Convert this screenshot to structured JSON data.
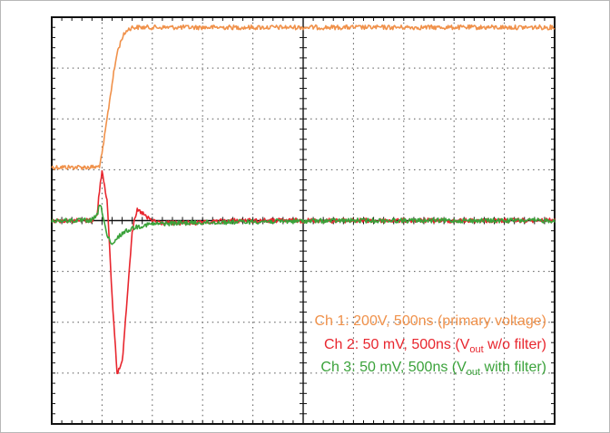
{
  "chart_data": {
    "type": "line",
    "title": "",
    "xlabel": "",
    "ylabel": "",
    "grid": true,
    "divisions": {
      "x": 10,
      "y": 8
    },
    "x": [
      0.0,
      0.8,
      0.9,
      0.95,
      1.0,
      1.1,
      1.2,
      1.3,
      1.4,
      1.5,
      1.6,
      1.7,
      1.8,
      1.9,
      2.0,
      2.2,
      2.5,
      3.0,
      3.5,
      4.0,
      5.0,
      6.0,
      7.0,
      8.0,
      9.0,
      10.0
    ],
    "x_unit": "divisions (500ns/div)",
    "y_unit": "divisions from top",
    "series": [
      {
        "name": "Ch 1: 200V, 500ns (primary voltage)",
        "color": "#f0914a",
        "values": [
          2.95,
          2.95,
          2.95,
          2.92,
          2.7,
          2.0,
          1.3,
          0.7,
          0.4,
          0.25,
          0.2,
          0.2,
          0.2,
          0.2,
          0.2,
          0.2,
          0.2,
          0.2,
          0.2,
          0.2,
          0.2,
          0.2,
          0.2,
          0.2,
          0.2,
          0.2
        ]
      },
      {
        "name": "Ch 2: 50 mV, 500ns (Vout w/o filter)",
        "color": "#e8262e",
        "values": [
          4.0,
          4.0,
          3.9,
          3.4,
          3.0,
          3.6,
          5.5,
          7.0,
          6.8,
          5.5,
          4.2,
          3.8,
          3.85,
          3.95,
          4.0,
          4.05,
          4.05,
          4.05,
          4.0,
          4.0,
          4.0,
          4.0,
          4.0,
          4.0,
          4.0,
          4.0
        ]
      },
      {
        "name": "Ch 3: 50 mV, 500ns (Vout with filter)",
        "color": "#3aa23a",
        "values": [
          4.0,
          4.0,
          3.9,
          3.7,
          3.8,
          4.3,
          4.5,
          4.35,
          4.25,
          4.2,
          4.15,
          4.12,
          4.1,
          4.08,
          4.07,
          4.06,
          4.05,
          4.04,
          4.03,
          4.02,
          4.01,
          4.0,
          4.0,
          4.0,
          4.0,
          4.0
        ]
      }
    ],
    "legend_position": "bottom-right",
    "legend": [
      {
        "color": "#f0914a",
        "before": "Ch 1: 200V, 500ns (primary voltage)",
        "sub": "",
        "after": ""
      },
      {
        "color": "#e8262e",
        "before": "Ch 2: 50 mV, 500ns (V",
        "sub": "out",
        "after": " w/o filter)"
      },
      {
        "color": "#3aa23a",
        "before": "Ch 3: 50 mV, 500ns (V",
        "sub": "out",
        "after": " with filter)"
      }
    ]
  }
}
